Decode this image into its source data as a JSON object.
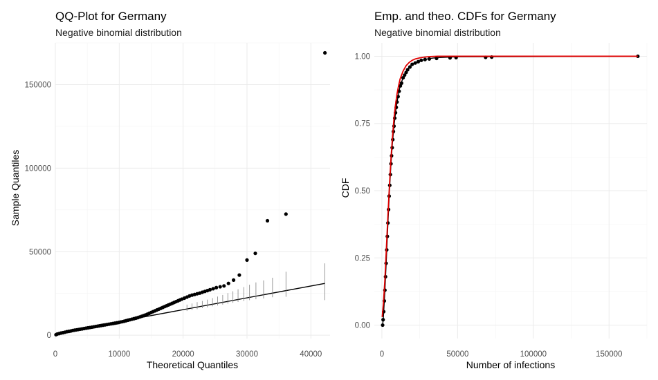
{
  "chart_data": [
    {
      "type": "scatter",
      "title": "QQ-Plot for Germany",
      "subtitle": "Negative binomial distribution",
      "xlabel": "Theoretical Quantiles",
      "ylabel": "Sample Quantiles",
      "xlim": [
        0,
        43000
      ],
      "ylim": [
        -2000,
        175000
      ],
      "xticks": [
        0,
        10000,
        20000,
        30000,
        40000
      ],
      "xtick_labels": [
        "0",
        "10000",
        "20000",
        "30000",
        "40000"
      ],
      "yticks": [
        0,
        50000,
        100000,
        150000
      ],
      "ytick_labels": [
        "0",
        "50000",
        "100000",
        "150000"
      ],
      "grid": true,
      "series": [
        {
          "kind": "points",
          "color": "#000000",
          "points": [
            [
              100,
              300
            ],
            [
              300,
              700
            ],
            [
              600,
              1000
            ],
            [
              900,
              1300
            ],
            [
              1200,
              1500
            ],
            [
              1500,
              1800
            ],
            [
              1800,
              2100
            ],
            [
              2100,
              2300
            ],
            [
              2400,
              2500
            ],
            [
              2700,
              2800
            ],
            [
              3000,
              3000
            ],
            [
              3300,
              3200
            ],
            [
              3600,
              3400
            ],
            [
              3900,
              3600
            ],
            [
              4200,
              3800
            ],
            [
              4500,
              4000
            ],
            [
              4800,
              4200
            ],
            [
              5100,
              4400
            ],
            [
              5400,
              4600
            ],
            [
              5700,
              4800
            ],
            [
              6000,
              5000
            ],
            [
              6300,
              5200
            ],
            [
              6600,
              5400
            ],
            [
              6900,
              5600
            ],
            [
              7200,
              5800
            ],
            [
              7500,
              6000
            ],
            [
              7800,
              6200
            ],
            [
              8100,
              6400
            ],
            [
              8400,
              6600
            ],
            [
              8700,
              6800
            ],
            [
              9000,
              7000
            ],
            [
              9300,
              7200
            ],
            [
              9600,
              7400
            ],
            [
              9900,
              7600
            ],
            [
              10200,
              7900
            ],
            [
              10500,
              8100
            ],
            [
              10800,
              8400
            ],
            [
              11100,
              8700
            ],
            [
              11400,
              9000
            ],
            [
              11700,
              9300
            ],
            [
              12000,
              9600
            ],
            [
              12300,
              9900
            ],
            [
              12600,
              10200
            ],
            [
              12900,
              10500
            ],
            [
              13200,
              10900
            ],
            [
              13500,
              11300
            ],
            [
              13800,
              11700
            ],
            [
              14100,
              12100
            ],
            [
              14400,
              12600
            ],
            [
              14700,
              13100
            ],
            [
              15000,
              13600
            ],
            [
              15300,
              14100
            ],
            [
              15600,
              14600
            ],
            [
              15900,
              15100
            ],
            [
              16200,
              15600
            ],
            [
              16500,
              16100
            ],
            [
              16800,
              16600
            ],
            [
              17100,
              17100
            ],
            [
              17400,
              17600
            ],
            [
              17700,
              18100
            ],
            [
              18000,
              18600
            ],
            [
              18300,
              19100
            ],
            [
              18600,
              19600
            ],
            [
              18900,
              20100
            ],
            [
              19200,
              20600
            ],
            [
              19500,
              21100
            ],
            [
              19800,
              21600
            ],
            [
              20200,
              22200
            ],
            [
              20600,
              22800
            ],
            [
              21000,
              23500
            ],
            [
              21400,
              24000
            ],
            [
              21800,
              24400
            ],
            [
              22200,
              24800
            ],
            [
              22600,
              25200
            ],
            [
              23000,
              25700
            ],
            [
              23400,
              26200
            ],
            [
              23800,
              26700
            ],
            [
              24200,
              27200
            ],
            [
              24700,
              27800
            ],
            [
              25200,
              28500
            ],
            [
              25800,
              29000
            ],
            [
              26400,
              29500
            ],
            [
              27100,
              31000
            ],
            [
              27900,
              33000
            ],
            [
              28800,
              36000
            ],
            [
              30000,
              45000
            ],
            [
              31300,
              49000
            ],
            [
              33200,
              68500
            ],
            [
              36100,
              72500
            ],
            [
              42200,
              169000
            ]
          ]
        },
        {
          "kind": "line",
          "color": "#000000",
          "x": [
            100,
            42200
          ],
          "y": [
            1200,
            31000
          ]
        },
        {
          "kind": "errorbars",
          "color": "#7f7f7f",
          "bars": [
            [
              20600,
              14500,
              18300
            ],
            [
              21400,
              15000,
              19000
            ],
            [
              22200,
              15600,
              19800
            ],
            [
              23000,
              16200,
              20500
            ],
            [
              23800,
              16700,
              21300
            ],
            [
              24600,
              17300,
              22200
            ],
            [
              25400,
              17800,
              23100
            ],
            [
              26200,
              18300,
              24100
            ],
            [
              27000,
              18900,
              25200
            ],
            [
              27800,
              19400,
              26300
            ],
            [
              28600,
              19900,
              27500
            ],
            [
              29500,
              20400,
              28800
            ],
            [
              30400,
              21000,
              30200
            ],
            [
              31400,
              21500,
              31600
            ],
            [
              32600,
              22000,
              32800
            ],
            [
              34000,
              22700,
              34400
            ],
            [
              36100,
              23000,
              38000
            ],
            [
              42200,
              21000,
              43000
            ]
          ]
        }
      ]
    },
    {
      "type": "line",
      "title": "Emp. and theo. CDFs for Germany",
      "subtitle": "Negative binomial distribution",
      "xlabel": "Number of infections",
      "ylabel": "CDF",
      "xlim": [
        -5000,
        175000
      ],
      "ylim": [
        -0.05,
        1.05
      ],
      "xticks": [
        0,
        50000,
        100000,
        150000
      ],
      "xtick_labels": [
        "0",
        "50000",
        "100000",
        "150000"
      ],
      "yticks": [
        0,
        0.25,
        0.5,
        0.75,
        1
      ],
      "ytick_labels": [
        "0.00",
        "0.25",
        "0.50",
        "0.75",
        "1.00"
      ],
      "grid": true,
      "series": [
        {
          "kind": "points",
          "color": "#000000",
          "points": [
            [
              500,
              0.0
            ],
            [
              800,
              0.02
            ],
            [
              1200,
              0.05
            ],
            [
              1600,
              0.09
            ],
            [
              2000,
              0.13
            ],
            [
              2400,
              0.18
            ],
            [
              2800,
              0.23
            ],
            [
              3200,
              0.28
            ],
            [
              3600,
              0.33
            ],
            [
              4000,
              0.38
            ],
            [
              4400,
              0.43
            ],
            [
              4800,
              0.48
            ],
            [
              5200,
              0.52
            ],
            [
              5600,
              0.56
            ],
            [
              6000,
              0.6
            ],
            [
              6400,
              0.63
            ],
            [
              6800,
              0.66
            ],
            [
              7200,
              0.69
            ],
            [
              7600,
              0.72
            ],
            [
              8000,
              0.74
            ],
            [
              8500,
              0.77
            ],
            [
              9000,
              0.79
            ],
            [
              9500,
              0.81
            ],
            [
              10000,
              0.83
            ],
            [
              10700,
              0.85
            ],
            [
              11400,
              0.87
            ],
            [
              12200,
              0.89
            ],
            [
              13000,
              0.9
            ],
            [
              14000,
              0.92
            ],
            [
              15000,
              0.93
            ],
            [
              16000,
              0.94
            ],
            [
              17000,
              0.95
            ],
            [
              18500,
              0.96
            ],
            [
              20000,
              0.97
            ],
            [
              22000,
              0.975
            ],
            [
              24000,
              0.98
            ],
            [
              26000,
              0.985
            ],
            [
              28500,
              0.988
            ],
            [
              31300,
              0.99
            ],
            [
              36100,
              0.992
            ],
            [
              45000,
              0.994
            ],
            [
              49000,
              0.995
            ],
            [
              68500,
              0.996
            ],
            [
              72500,
              0.997
            ],
            [
              169000,
              1.0
            ]
          ]
        },
        {
          "kind": "line",
          "color": "#000000",
          "x": [
            500,
            1000,
            2000,
            3000,
            4000,
            5000,
            6000,
            7000,
            8000,
            9000,
            10000,
            12000,
            14000,
            16000,
            18000,
            20000,
            24000,
            28000,
            32000,
            36000,
            50000,
            169000
          ],
          "y": [
            0.0,
            0.03,
            0.13,
            0.25,
            0.38,
            0.5,
            0.6,
            0.68,
            0.74,
            0.79,
            0.83,
            0.89,
            0.92,
            0.94,
            0.96,
            0.97,
            0.98,
            0.988,
            0.992,
            0.995,
            0.998,
            1.0
          ]
        },
        {
          "kind": "line",
          "color": "#e00000",
          "x": [
            200,
            1000,
            2000,
            3000,
            4000,
            5000,
            6000,
            7000,
            8000,
            9000,
            10000,
            11000,
            12000,
            14000,
            16000,
            18000,
            20000,
            22000,
            25000,
            28000,
            32000,
            37000,
            45000,
            169000
          ],
          "y": [
            0.03,
            0.08,
            0.17,
            0.29,
            0.41,
            0.52,
            0.62,
            0.7,
            0.77,
            0.82,
            0.86,
            0.89,
            0.915,
            0.945,
            0.965,
            0.977,
            0.985,
            0.99,
            0.994,
            0.997,
            0.999,
            1.0,
            1.0,
            1.0
          ]
        }
      ]
    }
  ]
}
